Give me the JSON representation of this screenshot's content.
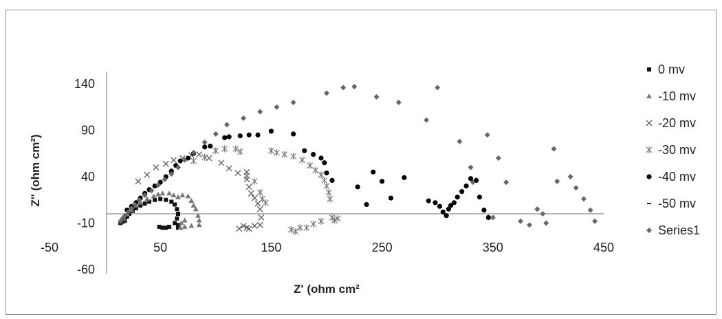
{
  "chart_data": {
    "type": "scatter",
    "title": "",
    "xlabel": "Z' (ohm cm²",
    "ylabel": "Z'' (ohm cm²)",
    "xlim": [
      -50,
      450
    ],
    "ylim": [
      -60,
      140
    ],
    "x_ticks": [
      "-50",
      "50",
      "150",
      "250",
      "350",
      "450"
    ],
    "y_ticks": [
      "140",
      "90",
      "40",
      "-10",
      "-60"
    ],
    "legend_position": "right",
    "grid": false,
    "series": [
      {
        "name": "0 mv",
        "marker": "square",
        "color": "#111111",
        "points": [
          [
            14,
            -10
          ],
          [
            16,
            -8
          ],
          [
            18,
            -6
          ],
          [
            20,
            -3
          ],
          [
            22,
            0
          ],
          [
            25,
            3
          ],
          [
            28,
            6
          ],
          [
            32,
            9
          ],
          [
            36,
            11
          ],
          [
            40,
            13
          ],
          [
            45,
            15
          ],
          [
            50,
            16
          ],
          [
            55,
            15
          ],
          [
            60,
            13
          ],
          [
            63,
            10
          ],
          [
            65,
            5
          ],
          [
            66,
            0
          ],
          [
            65,
            -5
          ],
          [
            63,
            -10
          ],
          [
            58,
            -14
          ],
          [
            55,
            -15
          ],
          [
            52,
            -15
          ],
          [
            49,
            -14
          ],
          [
            66,
            -12
          ],
          [
            66,
            -15
          ]
        ]
      },
      {
        "name": "-10 mv",
        "marker": "triangle",
        "color": "#777777",
        "points": [
          [
            17,
            -5
          ],
          [
            20,
            0
          ],
          [
            24,
            4
          ],
          [
            28,
            9
          ],
          [
            32,
            12
          ],
          [
            38,
            16
          ],
          [
            44,
            19
          ],
          [
            48,
            21
          ],
          [
            52,
            22
          ],
          [
            58,
            22
          ],
          [
            62,
            20
          ],
          [
            66,
            18
          ],
          [
            70,
            20
          ],
          [
            75,
            19
          ],
          [
            78,
            14
          ],
          [
            80,
            9
          ],
          [
            82,
            5
          ],
          [
            84,
            -2
          ],
          [
            85,
            -7
          ],
          [
            85,
            -12
          ],
          [
            78,
            -13
          ],
          [
            72,
            -14
          ],
          [
            68,
            -15
          ],
          [
            69,
            -10
          ],
          [
            72,
            -7
          ]
        ]
      },
      {
        "name": "-20 mv",
        "marker": "x",
        "color": "#666666",
        "points": [
          [
            30,
            35
          ],
          [
            38,
            42
          ],
          [
            46,
            50
          ],
          [
            55,
            54
          ],
          [
            62,
            58
          ],
          [
            70,
            60
          ],
          [
            78,
            63
          ],
          [
            85,
            64
          ],
          [
            94,
            60
          ],
          [
            105,
            55
          ],
          [
            112,
            49
          ],
          [
            120,
            44
          ],
          [
            128,
            45
          ],
          [
            128,
            37
          ],
          [
            130,
            29
          ],
          [
            132,
            22
          ],
          [
            135,
            17
          ],
          [
            138,
            11
          ],
          [
            140,
            5
          ],
          [
            141,
            -4
          ],
          [
            140,
            -12
          ],
          [
            135,
            -13
          ],
          [
            130,
            -16
          ],
          [
            128,
            -15
          ],
          [
            125,
            -13
          ],
          [
            121,
            -16
          ]
        ]
      },
      {
        "name": "-30 mv",
        "marker": "star",
        "color": "#777777",
        "points": [
          [
            80,
            57
          ],
          [
            90,
            61
          ],
          [
            100,
            68
          ],
          [
            108,
            70
          ],
          [
            118,
            70
          ],
          [
            122,
            67
          ],
          [
            128,
            41
          ],
          [
            135,
            35
          ],
          [
            140,
            23
          ],
          [
            142,
            16
          ],
          [
            145,
            12
          ],
          [
            150,
            68
          ],
          [
            155,
            66
          ],
          [
            162,
            64
          ],
          [
            170,
            62
          ],
          [
            178,
            58
          ],
          [
            185,
            52
          ],
          [
            190,
            47
          ],
          [
            195,
            42
          ],
          [
            198,
            36
          ],
          [
            200,
            30
          ],
          [
            202,
            23
          ],
          [
            203,
            16
          ],
          [
            195,
            -8
          ],
          [
            188,
            -11
          ],
          [
            182,
            -15
          ],
          [
            176,
            -15
          ],
          [
            172,
            -19
          ],
          [
            168,
            -17
          ],
          [
            205,
            -4
          ],
          [
            207,
            -7
          ],
          [
            210,
            -5
          ]
        ]
      },
      {
        "name": "-40 mv",
        "marker": "circle",
        "color": "#000000",
        "points": [
          [
            20,
            4
          ],
          [
            24,
            8
          ],
          [
            28,
            12
          ],
          [
            32,
            17
          ],
          [
            36,
            22
          ],
          [
            40,
            26
          ],
          [
            45,
            30
          ],
          [
            50,
            34
          ],
          [
            55,
            40
          ],
          [
            60,
            46
          ],
          [
            64,
            52
          ],
          [
            68,
            57
          ],
          [
            75,
            60
          ],
          [
            80,
            65
          ],
          [
            90,
            72
          ],
          [
            95,
            73
          ],
          [
            108,
            82
          ],
          [
            112,
            83
          ],
          [
            122,
            84
          ],
          [
            130,
            85
          ],
          [
            138,
            85
          ],
          [
            150,
            89
          ],
          [
            170,
            86
          ],
          [
            180,
            68
          ],
          [
            188,
            64
          ],
          [
            195,
            60
          ],
          [
            198,
            55
          ],
          [
            200,
            44
          ],
          [
            205,
            36
          ],
          [
            228,
            29
          ],
          [
            236,
            10
          ],
          [
            242,
            45
          ],
          [
            250,
            35
          ],
          [
            258,
            17
          ],
          [
            270,
            39
          ],
          [
            292,
            14
          ],
          [
            298,
            12
          ],
          [
            302,
            8
          ],
          [
            305,
            2
          ],
          [
            308,
            -2
          ],
          [
            310,
            5
          ],
          [
            312,
            9
          ],
          [
            315,
            12
          ],
          [
            318,
            18
          ],
          [
            322,
            24
          ],
          [
            326,
            30
          ],
          [
            330,
            38
          ],
          [
            335,
            36
          ],
          [
            338,
            18
          ],
          [
            342,
            4
          ],
          [
            346,
            -4
          ]
        ]
      },
      {
        "name": "-50 mv",
        "marker": "dash",
        "color": "#222222",
        "points": [
          [
            14,
            -11
          ],
          [
            16,
            -10
          ],
          [
            18,
            -9
          ]
        ]
      },
      {
        "name": "Series1",
        "marker": "diamond",
        "color": "#666666",
        "points": [
          [
            14,
            -8
          ],
          [
            16,
            -5
          ],
          [
            18,
            -2
          ],
          [
            21,
            2
          ],
          [
            24,
            6
          ],
          [
            27,
            10
          ],
          [
            31,
            15
          ],
          [
            36,
            20
          ],
          [
            42,
            25
          ],
          [
            48,
            31
          ],
          [
            54,
            37
          ],
          [
            60,
            43
          ],
          [
            66,
            50
          ],
          [
            72,
            58
          ],
          [
            80,
            66
          ],
          [
            90,
            77
          ],
          [
            100,
            86
          ],
          [
            110,
            96
          ],
          [
            125,
            103
          ],
          [
            140,
            110
          ],
          [
            155,
            115
          ],
          [
            170,
            120
          ],
          [
            200,
            130
          ],
          [
            215,
            136
          ],
          [
            225,
            137
          ],
          [
            245,
            126
          ],
          [
            265,
            120
          ],
          [
            290,
            101
          ],
          [
            300,
            136
          ],
          [
            320,
            78
          ],
          [
            330,
            50
          ],
          [
            332,
            34
          ],
          [
            345,
            85
          ],
          [
            355,
            60
          ],
          [
            362,
            34
          ],
          [
            350,
            -4
          ],
          [
            375,
            -8
          ],
          [
            383,
            -12
          ],
          [
            390,
            5
          ],
          [
            395,
            0
          ],
          [
            398,
            -10
          ],
          [
            405,
            70
          ],
          [
            408,
            35
          ],
          [
            420,
            40
          ],
          [
            425,
            28
          ],
          [
            432,
            16
          ],
          [
            438,
            4
          ],
          [
            442,
            -8
          ]
        ]
      }
    ]
  }
}
